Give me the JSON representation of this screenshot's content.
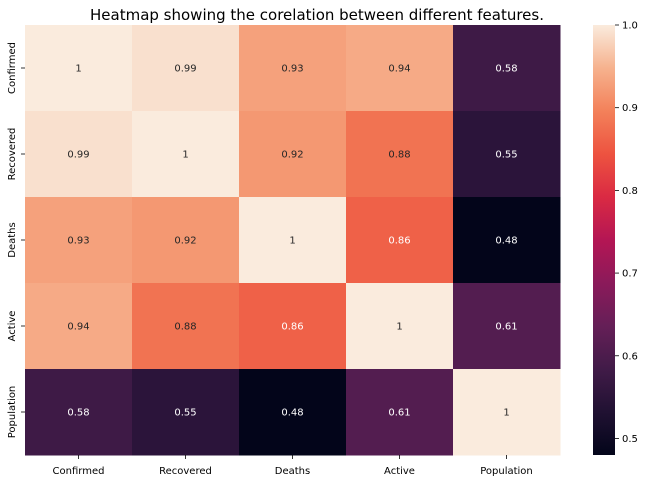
{
  "chart_data": {
    "type": "heatmap",
    "title": "Heatmap showing the corelation between different features.",
    "rows": [
      "Confirmed",
      "Recovered",
      "Deaths",
      "Active",
      "Population"
    ],
    "columns": [
      "Confirmed",
      "Recovered",
      "Deaths",
      "Active",
      "Population"
    ],
    "values": [
      [
        1,
        0.99,
        0.93,
        0.94,
        0.58
      ],
      [
        0.99,
        1,
        0.92,
        0.88,
        0.55
      ],
      [
        0.93,
        0.92,
        1,
        0.86,
        0.48
      ],
      [
        0.94,
        0.88,
        0.86,
        1,
        0.61
      ],
      [
        0.58,
        0.55,
        0.48,
        0.61,
        1
      ]
    ],
    "value_labels": [
      [
        "1",
        "0.99",
        "0.93",
        "0.94",
        "0.58"
      ],
      [
        "0.99",
        "1",
        "0.92",
        "0.88",
        "0.55"
      ],
      [
        "0.93",
        "0.92",
        "1",
        "0.86",
        "0.48"
      ],
      [
        "0.94",
        "0.88",
        "0.86",
        "1",
        "0.61"
      ],
      [
        "0.58",
        "0.55",
        "0.48",
        "0.61",
        "1"
      ]
    ],
    "colormap": "rocket",
    "colorbar": {
      "range": [
        0.48,
        1.0
      ],
      "ticks": [
        0.5,
        0.6,
        0.7,
        0.8,
        0.9,
        1.0
      ],
      "tick_labels": [
        "0.5",
        "0.6",
        "0.7",
        "0.8",
        "0.9",
        "1.0"
      ]
    }
  }
}
